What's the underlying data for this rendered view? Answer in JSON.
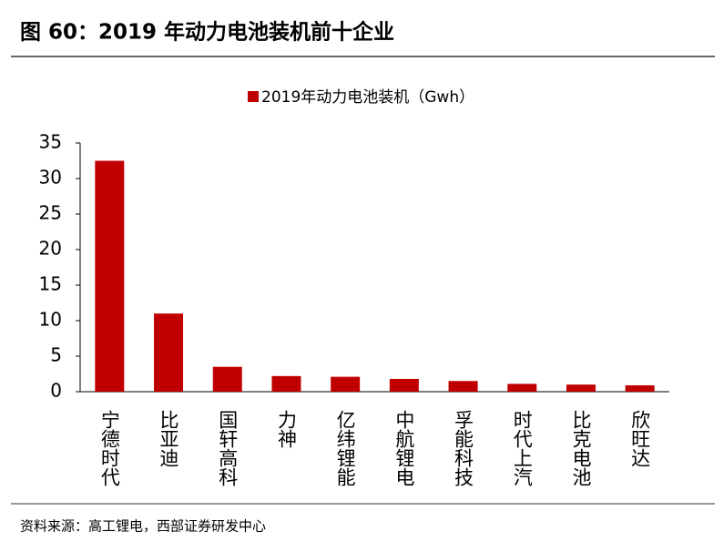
{
  "chart_data": {
    "type": "bar",
    "title": "图 60：2019 年动力电池装机前十企业",
    "categories": [
      "宁德时代",
      "比亚迪",
      "国轩高科",
      "力神",
      "亿纬锂能",
      "中航锂电",
      "孚能科技",
      "时代上汽",
      "比克电池",
      "欣旺达"
    ],
    "series": [
      {
        "name": "2019年动力电池装机（Gwh）",
        "color": "#c00000",
        "values": [
          32.5,
          11,
          3.5,
          2.2,
          2.1,
          1.8,
          1.5,
          1.1,
          1.0,
          0.9
        ]
      }
    ],
    "ylim": [
      0,
      35
    ],
    "yticks": [
      0,
      5,
      10,
      15,
      20,
      25,
      30,
      35
    ],
    "grid": false,
    "legend": "top",
    "source": "资料来源：高工锂电，西部证券研发中心"
  }
}
